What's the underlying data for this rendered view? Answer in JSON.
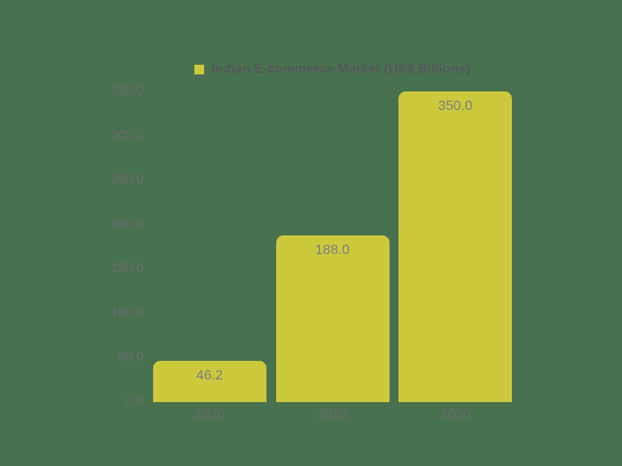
{
  "chart_data": {
    "type": "bar",
    "title": "",
    "legend": {
      "position": "top",
      "label": "Indian E-commerce Market (US$ Billions)"
    },
    "categories": [
      "2020",
      "2025",
      "2030"
    ],
    "series": [
      {
        "name": "Indian E-commerce Market (US$ Billions)",
        "values": [
          46.2,
          188.0,
          350.0
        ]
      }
    ],
    "value_labels": [
      "46.2",
      "188.0",
      "350.0"
    ],
    "xlabel": "",
    "ylabel": "",
    "ylim": [
      0,
      350
    ],
    "y_tick_step": 50,
    "y_tick_labels": [
      "0.0",
      "50.0",
      "100.0",
      "150.0",
      "200.0",
      "250.0",
      "300.0",
      "350.0"
    ],
    "grid": false,
    "colors": {
      "background": "#48714F",
      "bar": "#CCC93D",
      "legend_text": "#56585C",
      "tick_text": "#696A6C",
      "value_label_text": "#7C7E80"
    }
  }
}
